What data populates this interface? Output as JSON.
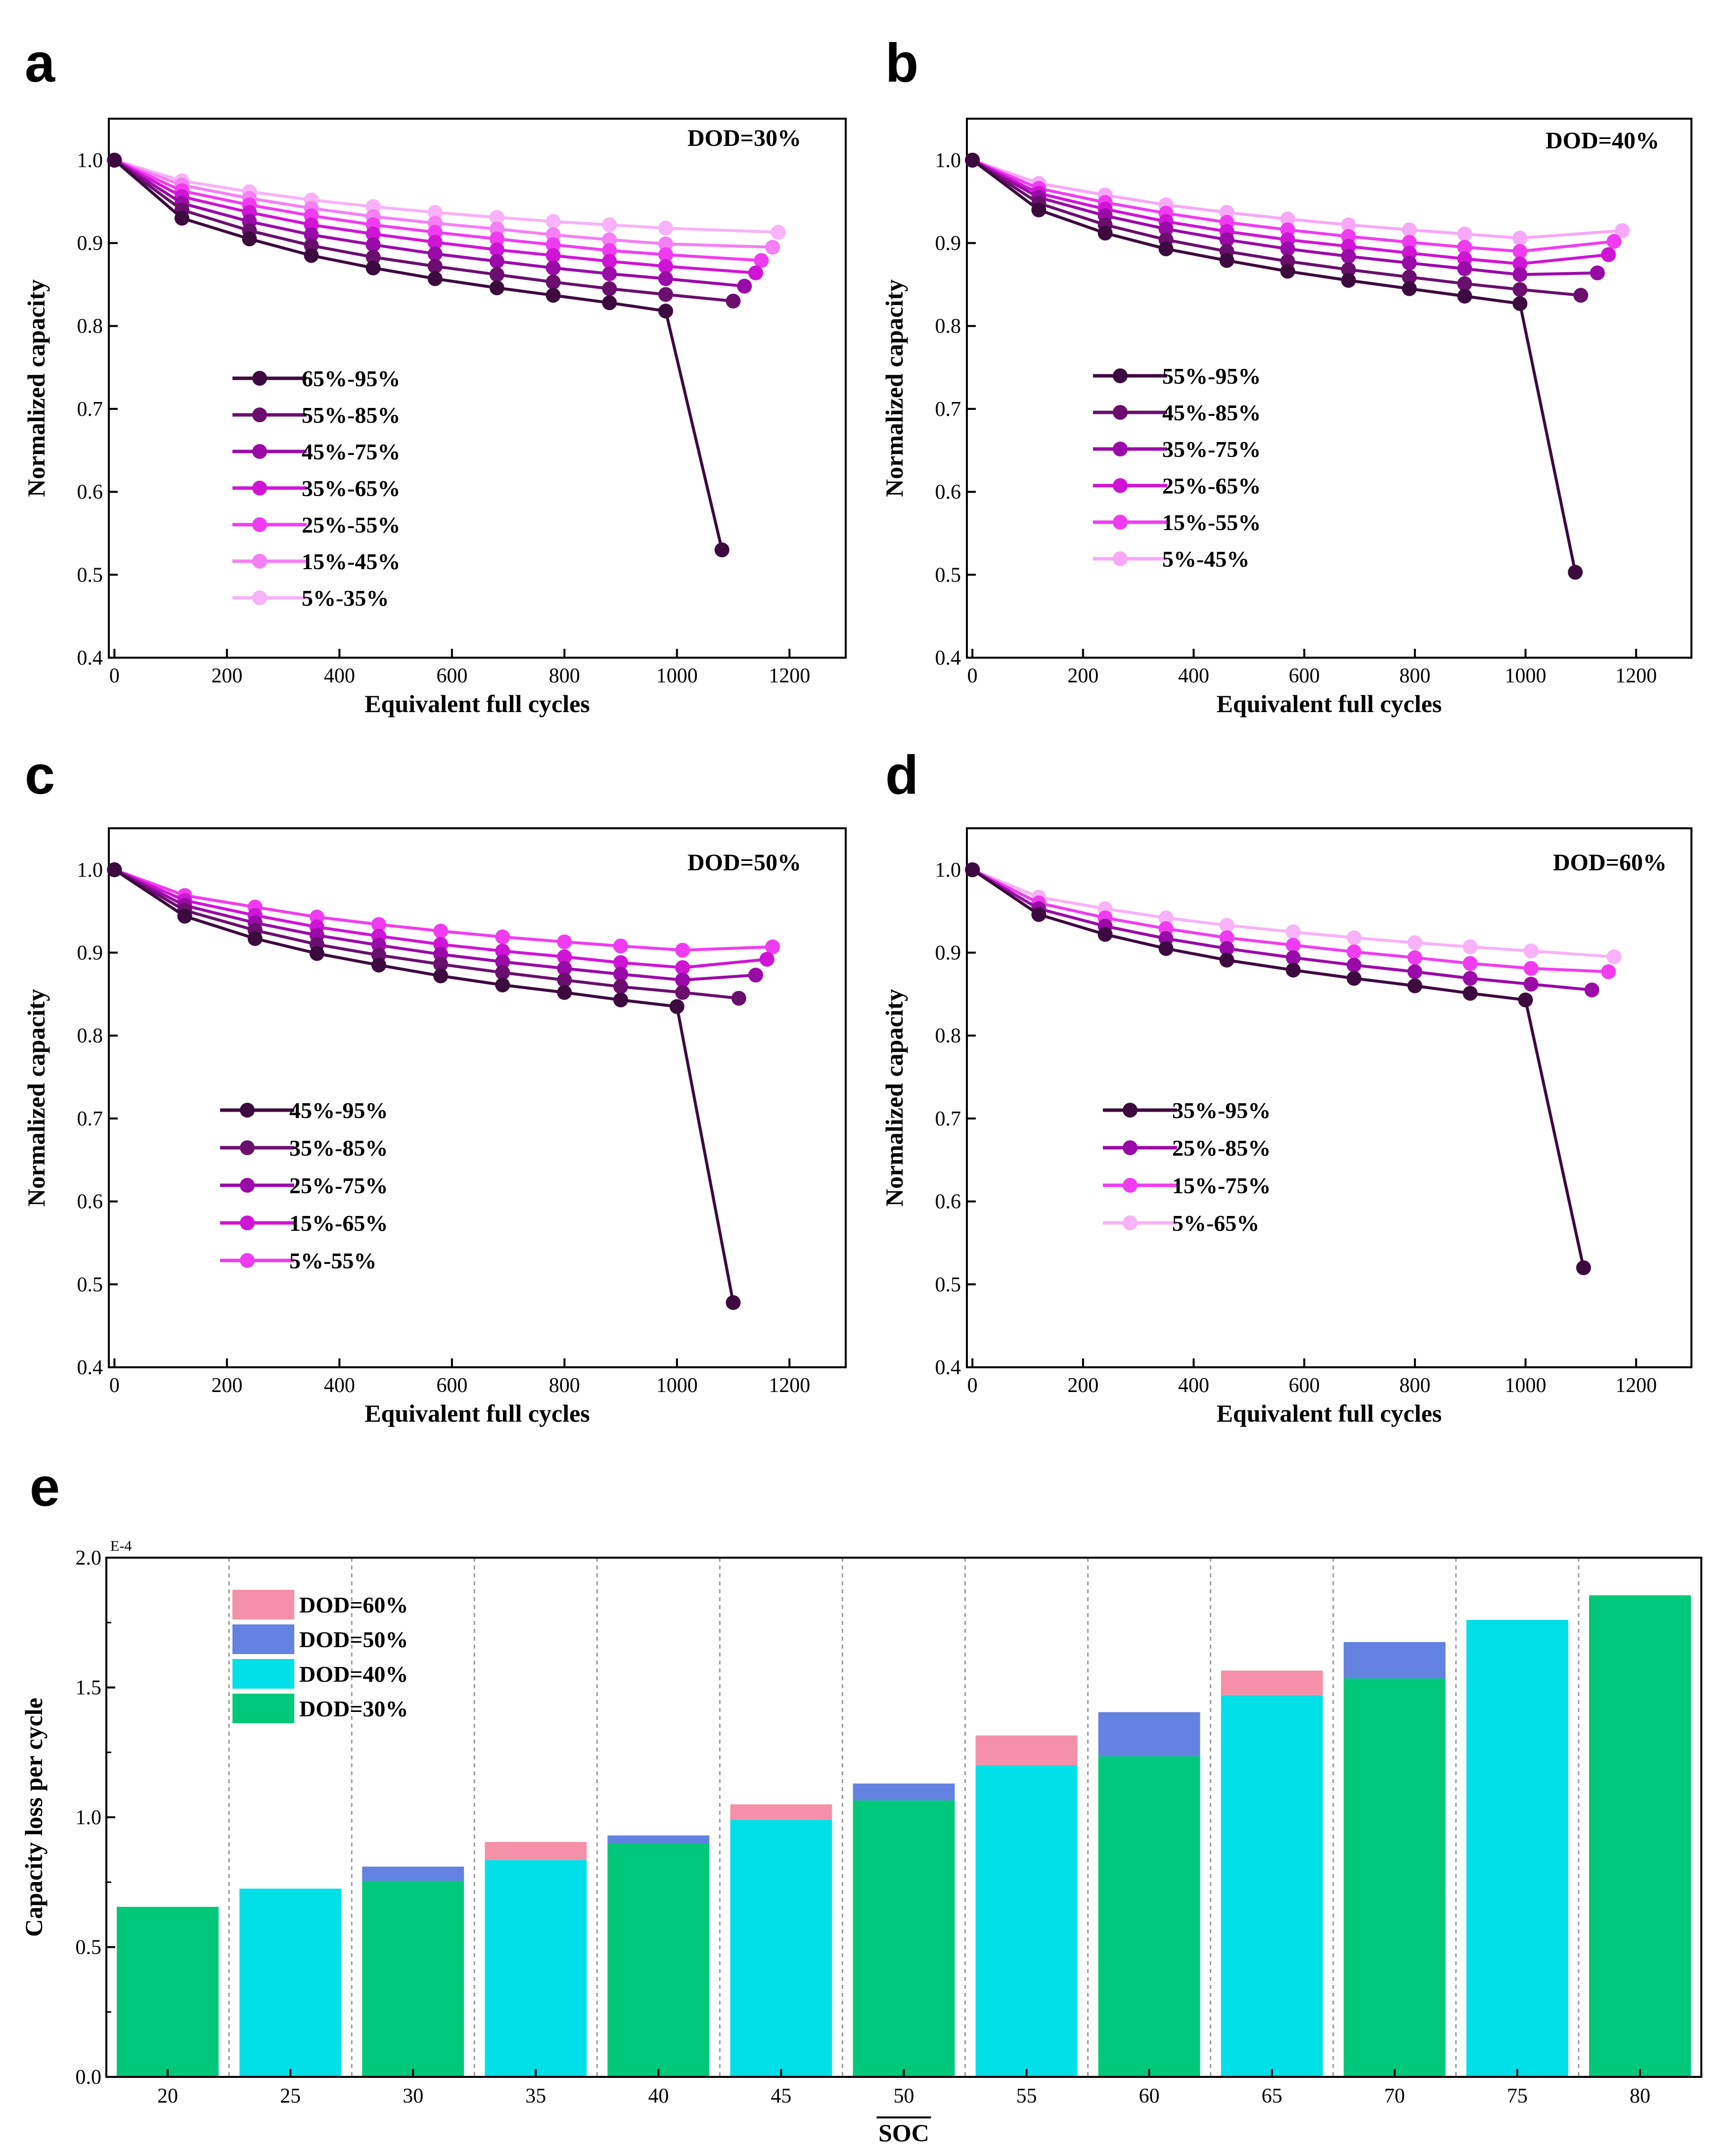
{
  "figure": {
    "panels": [
      {
        "letter": "a",
        "annotation": "DOD=30%"
      },
      {
        "letter": "b",
        "annotation": "DOD=40%"
      },
      {
        "letter": "c",
        "annotation": "DOD=50%"
      },
      {
        "letter": "d",
        "annotation": "DOD=60%"
      },
      {
        "letter": "e"
      }
    ],
    "multiplier_label": "E-4"
  },
  "chart_data": [
    {
      "type": "line",
      "panel": "a",
      "annotation": "DOD=30%",
      "xlabel": "Equivalent full cycles",
      "ylabel": "Normalized capacity",
      "xlim": [
        -10,
        1300
      ],
      "ylim": [
        0.4,
        1.05
      ],
      "xticks": [
        0,
        200,
        400,
        600,
        800,
        1000,
        1200
      ],
      "yticks": [
        0.4,
        0.5,
        0.6,
        0.7,
        0.8,
        0.9,
        1.0
      ],
      "series": [
        {
          "name": "65%-95%",
          "color": "#3d0a3f",
          "x": [
            0,
            120,
            240,
            350,
            460,
            570,
            680,
            780,
            880,
            980,
            1080
          ],
          "y": [
            1.0,
            0.93,
            0.905,
            0.885,
            0.87,
            0.857,
            0.846,
            0.837,
            0.828,
            0.818,
            0.53
          ]
        },
        {
          "name": "55%-85%",
          "color": "#6a0f6e",
          "x": [
            0,
            120,
            240,
            350,
            460,
            570,
            680,
            780,
            880,
            980,
            1100
          ],
          "y": [
            1.0,
            0.94,
            0.915,
            0.897,
            0.883,
            0.872,
            0.862,
            0.853,
            0.845,
            0.838,
            0.83
          ]
        },
        {
          "name": "45%-75%",
          "color": "#9a0aa8",
          "x": [
            0,
            120,
            240,
            350,
            460,
            570,
            680,
            780,
            880,
            980,
            1120
          ],
          "y": [
            1.0,
            0.948,
            0.926,
            0.91,
            0.898,
            0.887,
            0.878,
            0.87,
            0.863,
            0.857,
            0.848
          ]
        },
        {
          "name": "35%-65%",
          "color": "#cf14d6",
          "x": [
            0,
            120,
            240,
            350,
            460,
            570,
            680,
            780,
            880,
            980,
            1140
          ],
          "y": [
            1.0,
            0.956,
            0.937,
            0.922,
            0.911,
            0.901,
            0.892,
            0.885,
            0.878,
            0.872,
            0.864
          ]
        },
        {
          "name": "25%-55%",
          "color": "#f03cf0",
          "x": [
            0,
            120,
            240,
            350,
            460,
            570,
            680,
            780,
            880,
            980,
            1150
          ],
          "y": [
            1.0,
            0.963,
            0.946,
            0.933,
            0.922,
            0.913,
            0.905,
            0.898,
            0.891,
            0.886,
            0.879
          ]
        },
        {
          "name": "15%-45%",
          "color": "#f57ff5",
          "x": [
            0,
            120,
            240,
            350,
            460,
            570,
            680,
            780,
            880,
            980,
            1170
          ],
          "y": [
            1.0,
            0.97,
            0.954,
            0.942,
            0.932,
            0.924,
            0.917,
            0.91,
            0.904,
            0.899,
            0.895
          ]
        },
        {
          "name": "5%-35%",
          "color": "#f8b2f8",
          "x": [
            0,
            120,
            240,
            350,
            460,
            570,
            680,
            780,
            880,
            980,
            1180
          ],
          "y": [
            1.0,
            0.975,
            0.962,
            0.952,
            0.944,
            0.937,
            0.931,
            0.926,
            0.922,
            0.918,
            0.913
          ]
        }
      ]
    },
    {
      "type": "line",
      "panel": "b",
      "annotation": "DOD=40%",
      "xlabel": "Equivalent full cycles",
      "ylabel": "Normalized capacity",
      "xlim": [
        -10,
        1300
      ],
      "ylim": [
        0.4,
        1.05
      ],
      "xticks": [
        0,
        200,
        400,
        600,
        800,
        1000,
        1200
      ],
      "yticks": [
        0.4,
        0.5,
        0.6,
        0.7,
        0.8,
        0.9,
        1.0
      ],
      "series": [
        {
          "name": "55%-95%",
          "color": "#3d0a3f",
          "x": [
            0,
            120,
            240,
            350,
            460,
            570,
            680,
            790,
            890,
            990,
            1090
          ],
          "y": [
            1.0,
            0.94,
            0.912,
            0.893,
            0.879,
            0.866,
            0.855,
            0.845,
            0.836,
            0.827,
            0.503
          ]
        },
        {
          "name": "45%-85%",
          "color": "#6a0f6e",
          "x": [
            0,
            120,
            240,
            350,
            460,
            570,
            680,
            790,
            890,
            990,
            1100
          ],
          "y": [
            1.0,
            0.948,
            0.922,
            0.904,
            0.89,
            0.878,
            0.868,
            0.859,
            0.851,
            0.844,
            0.837
          ]
        },
        {
          "name": "35%-75%",
          "color": "#9a0aa8",
          "x": [
            0,
            120,
            240,
            350,
            460,
            570,
            680,
            790,
            890,
            990,
            1130
          ],
          "y": [
            1.0,
            0.955,
            0.933,
            0.917,
            0.904,
            0.893,
            0.884,
            0.876,
            0.869,
            0.862,
            0.864
          ]
        },
        {
          "name": "25%-65%",
          "color": "#cf14d6",
          "x": [
            0,
            120,
            240,
            350,
            460,
            570,
            680,
            790,
            890,
            990,
            1150
          ],
          "y": [
            1.0,
            0.96,
            0.941,
            0.926,
            0.914,
            0.904,
            0.896,
            0.888,
            0.881,
            0.875,
            0.886
          ]
        },
        {
          "name": "15%-55%",
          "color": "#f03cf0",
          "x": [
            0,
            120,
            240,
            350,
            460,
            570,
            680,
            790,
            890,
            990,
            1160
          ],
          "y": [
            1.0,
            0.966,
            0.949,
            0.936,
            0.925,
            0.916,
            0.908,
            0.901,
            0.895,
            0.89,
            0.902
          ]
        },
        {
          "name": "5%-45%",
          "color": "#f8a8f8",
          "x": [
            0,
            120,
            240,
            350,
            460,
            570,
            680,
            790,
            890,
            990,
            1175
          ],
          "y": [
            1.0,
            0.972,
            0.958,
            0.946,
            0.937,
            0.929,
            0.922,
            0.916,
            0.911,
            0.906,
            0.915
          ]
        }
      ]
    },
    {
      "type": "line",
      "panel": "c",
      "annotation": "DOD=50%",
      "xlabel": "Equivalent full cycles",
      "ylabel": "Normalized capacity",
      "xlim": [
        -10,
        1300
      ],
      "ylim": [
        0.4,
        1.05
      ],
      "xticks": [
        0,
        200,
        400,
        600,
        800,
        1000,
        1200
      ],
      "yticks": [
        0.4,
        0.5,
        0.6,
        0.7,
        0.8,
        0.9,
        1.0
      ],
      "series": [
        {
          "name": "45%-95%",
          "color": "#3d0a3f",
          "x": [
            0,
            125,
            250,
            360,
            470,
            580,
            690,
            800,
            900,
            1000,
            1100
          ],
          "y": [
            1.0,
            0.944,
            0.917,
            0.899,
            0.885,
            0.872,
            0.861,
            0.852,
            0.843,
            0.835,
            0.478
          ]
        },
        {
          "name": "35%-85%",
          "color": "#6a0f6e",
          "x": [
            0,
            125,
            250,
            360,
            470,
            580,
            690,
            800,
            900,
            1010,
            1110
          ],
          "y": [
            1.0,
            0.951,
            0.927,
            0.91,
            0.897,
            0.886,
            0.876,
            0.867,
            0.859,
            0.852,
            0.845
          ]
        },
        {
          "name": "25%-75%",
          "color": "#9a0aa8",
          "x": [
            0,
            125,
            250,
            360,
            470,
            580,
            690,
            800,
            900,
            1010,
            1140
          ],
          "y": [
            1.0,
            0.957,
            0.936,
            0.921,
            0.909,
            0.898,
            0.889,
            0.881,
            0.874,
            0.867,
            0.873
          ]
        },
        {
          "name": "15%-65%",
          "color": "#cf14d6",
          "x": [
            0,
            125,
            250,
            360,
            470,
            580,
            690,
            800,
            900,
            1010,
            1160
          ],
          "y": [
            1.0,
            0.963,
            0.945,
            0.931,
            0.92,
            0.91,
            0.902,
            0.895,
            0.888,
            0.882,
            0.892
          ]
        },
        {
          "name": "5%-55%",
          "color": "#f03cf0",
          "x": [
            0,
            125,
            250,
            360,
            470,
            580,
            690,
            800,
            900,
            1010,
            1170
          ],
          "y": [
            1.0,
            0.969,
            0.955,
            0.943,
            0.934,
            0.926,
            0.919,
            0.913,
            0.908,
            0.903,
            0.907
          ]
        }
      ]
    },
    {
      "type": "line",
      "panel": "d",
      "annotation": "DOD=60%",
      "xlabel": "Equivalent full cycles",
      "ylabel": "Normalized capacity",
      "xlim": [
        -10,
        1300
      ],
      "ylim": [
        0.4,
        1.05
      ],
      "xticks": [
        0,
        200,
        400,
        600,
        800,
        1000,
        1200
      ],
      "yticks": [
        0.4,
        0.5,
        0.6,
        0.7,
        0.8,
        0.9,
        1.0
      ],
      "series": [
        {
          "name": "35%-95%",
          "color": "#3d0a3f",
          "x": [
            0,
            120,
            240,
            350,
            460,
            580,
            690,
            800,
            900,
            1000,
            1105
          ],
          "y": [
            1.0,
            0.946,
            0.922,
            0.905,
            0.891,
            0.879,
            0.869,
            0.86,
            0.851,
            0.843,
            0.52
          ]
        },
        {
          "name": "25%-85%",
          "color": "#9a0aa8",
          "x": [
            0,
            120,
            240,
            350,
            460,
            580,
            690,
            800,
            900,
            1010,
            1120
          ],
          "y": [
            1.0,
            0.953,
            0.932,
            0.917,
            0.905,
            0.894,
            0.885,
            0.877,
            0.869,
            0.862,
            0.855
          ]
        },
        {
          "name": "15%-75%",
          "color": "#f03cf0",
          "x": [
            0,
            120,
            240,
            350,
            460,
            580,
            690,
            800,
            900,
            1010,
            1150
          ],
          "y": [
            1.0,
            0.96,
            0.942,
            0.929,
            0.918,
            0.909,
            0.901,
            0.894,
            0.887,
            0.881,
            0.877
          ]
        },
        {
          "name": "5%-65%",
          "color": "#f8b2f8",
          "x": [
            0,
            120,
            240,
            350,
            460,
            580,
            690,
            800,
            900,
            1010,
            1160
          ],
          "y": [
            1.0,
            0.967,
            0.953,
            0.942,
            0.933,
            0.925,
            0.918,
            0.912,
            0.907,
            0.902,
            0.895
          ]
        }
      ]
    },
    {
      "type": "bar",
      "panel": "e",
      "stacked": true,
      "xlabel": "SOC",
      "ylabel": "Capacity loss per cycle",
      "y_multiplier": "E-4",
      "ylim": [
        0,
        2.0
      ],
      "yticks": [
        0.0,
        0.5,
        1.0,
        1.5,
        2.0
      ],
      "categories": [
        "20",
        "25",
        "30",
        "35",
        "40",
        "45",
        "50",
        "55",
        "60",
        "65",
        "70",
        "75",
        "80"
      ],
      "series": [
        {
          "name": "DOD=30%",
          "color": "#00c87a",
          "values": [
            0.655,
            0,
            0.755,
            0,
            0.9,
            0,
            1.065,
            0,
            1.235,
            0,
            1.535,
            0,
            1.855
          ]
        },
        {
          "name": "DOD=40%",
          "color": "#00e0e8",
          "values": [
            0,
            0.725,
            0,
            0.835,
            0,
            0.99,
            0,
            1.2,
            0,
            1.47,
            0,
            1.76,
            0
          ]
        },
        {
          "name": "DOD=50%",
          "color": "#6482e0",
          "values": [
            0,
            0,
            0.055,
            0,
            0.03,
            0,
            0.065,
            0,
            0.17,
            0,
            0.14,
            0,
            0
          ]
        },
        {
          "name": "DOD=60%",
          "color": "#f490a8",
          "values": [
            0,
            0,
            0,
            0.07,
            0,
            0.06,
            0,
            0.115,
            0,
            0.095,
            0,
            0,
            0
          ]
        }
      ],
      "legend_order": [
        "DOD=60%",
        "DOD=50%",
        "DOD=40%",
        "DOD=30%"
      ]
    }
  ]
}
